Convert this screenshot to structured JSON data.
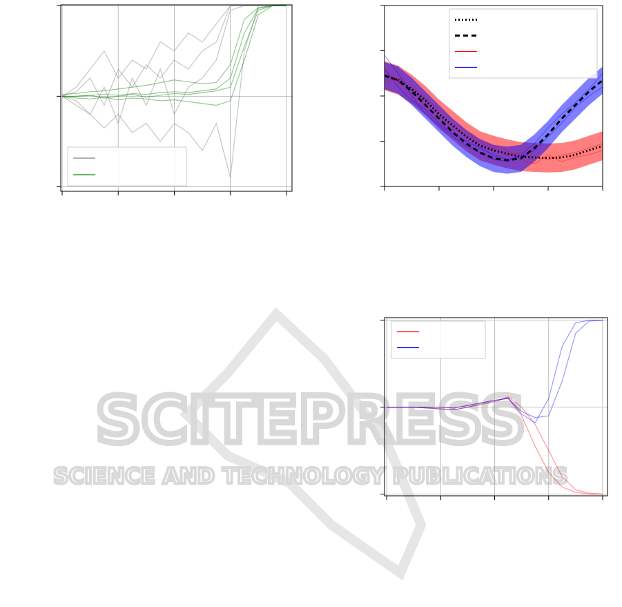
{
  "chart_data": [
    {
      "type": "line",
      "x": [
        0,
        0.25,
        0.5,
        0.75,
        1,
        1.25,
        1.5,
        1.75,
        2,
        2.25,
        2.5,
        2.75,
        3,
        3.25,
        3.5,
        3.75,
        4
      ],
      "xlim": [
        -0.025,
        4.1
      ],
      "xticks": [
        0,
        1,
        2,
        3,
        4
      ],
      "ylim": [
        -1.05,
        1.01
      ],
      "yticks": [
        -1,
        0,
        1
      ],
      "grid": true,
      "legend": "lower left",
      "alpha": 0.45,
      "series": [
        {
          "color": "#808080",
          "lines": [
            [
              0,
              0.1,
              0.3,
              0.5,
              0.2,
              0.4,
              0.3,
              0.6,
              0.5,
              0.7,
              0.6,
              0.8,
              1,
              1,
              1,
              1,
              1
            ],
            [
              0,
              -0.1,
              -0.2,
              0.1,
              -0.3,
              0.2,
              -0.1,
              0.3,
              -0.2,
              0.1,
              0.2,
              0.4,
              0.95,
              1,
              1,
              1,
              1
            ],
            [
              0,
              0.05,
              0.2,
              -0.1,
              0.3,
              0.1,
              0.35,
              0.2,
              0.4,
              0.3,
              0.5,
              0.6,
              1,
              1,
              1,
              1,
              1
            ],
            [
              0,
              -0.05,
              -0.2,
              -0.35,
              -0.2,
              -0.4,
              -0.3,
              -0.5,
              -0.3,
              -0.4,
              -0.6,
              -0.3,
              -0.9,
              0.5,
              1,
              1,
              1
            ]
          ]
        },
        {
          "color": "#118811",
          "lines": [
            [
              0,
              0,
              0.01,
              0.02,
              0.01,
              0.03,
              0.02,
              0.04,
              0.05,
              0.04,
              0.06,
              0.08,
              0.2,
              0.7,
              0.97,
              1,
              1
            ],
            [
              0,
              -0.02,
              -0.03,
              -0.01,
              -0.04,
              -0.02,
              -0.03,
              -0.05,
              -0.04,
              -0.06,
              -0.08,
              -0.1,
              -0.05,
              0.4,
              0.9,
              1,
              1
            ],
            [
              0.02,
              0.03,
              0.05,
              0.06,
              0.08,
              0.1,
              0.12,
              0.15,
              0.18,
              0.16,
              0.14,
              0.15,
              0.35,
              0.85,
              0.98,
              1,
              1
            ],
            [
              -0.01,
              0,
              0.01,
              -0.02,
              0,
              0.02,
              -0.01,
              0.01,
              0.03,
              0.02,
              0.04,
              0.06,
              0.1,
              0.55,
              0.95,
              1,
              1
            ]
          ]
        }
      ]
    },
    {
      "type": "line",
      "x": [
        0,
        0.25,
        0.5,
        0.75,
        1,
        1.25,
        1.5,
        1.75,
        2,
        2.25,
        2.5,
        2.75,
        3,
        3.25,
        3.5,
        3.75,
        4
      ],
      "xlim": [
        0,
        4
      ],
      "xticks": [
        0,
        1,
        2,
        3,
        4
      ],
      "ylim": [
        0,
        4
      ],
      "yticks": [
        0,
        1,
        2,
        3,
        4
      ],
      "grid": false,
      "legend": "upper right",
      "alpha": 0.35,
      "series": [
        {
          "color": "#000000",
          "linestyle": "dotted",
          "band": 0.32,
          "band_color": "#ff0000",
          "lines": [
            [
              2.45,
              2.35,
              2.15,
              1.9,
              1.6,
              1.35,
              1.1,
              0.9,
              0.8,
              0.72,
              0.66,
              0.64,
              0.63,
              0.64,
              0.7,
              0.8,
              0.9
            ]
          ]
        },
        {
          "color": "#000000",
          "linestyle": "dashed",
          "band": 0.3,
          "band_color": "#0000ff",
          "lines": [
            [
              2.45,
              2.35,
              2.1,
              1.8,
              1.5,
              1.2,
              0.95,
              0.75,
              0.62,
              0.58,
              0.62,
              0.85,
              1.15,
              1.5,
              1.8,
              2.1,
              2.35
            ]
          ]
        },
        {
          "color": "#ff0000",
          "lines": [
            [
              2.6,
              2.3,
              2.0,
              1.8,
              1.55,
              1.3,
              1.15,
              0.95,
              0.85,
              0.7,
              0.75,
              0.65,
              0.6,
              0.7,
              0.75,
              0.85,
              0.95
            ],
            [
              2.3,
              2.4,
              2.2,
              1.95,
              1.7,
              1.45,
              1.2,
              1.0,
              0.9,
              0.8,
              0.6,
              0.5,
              0.7,
              0.55,
              0.65,
              0.7,
              0.8
            ]
          ]
        },
        {
          "color": "#0000ff",
          "lines": [
            [
              2.9,
              2.5,
              2.0,
              1.6,
              1.35,
              1.1,
              0.9,
              0.75,
              0.6,
              0.55,
              0.7,
              0.95,
              1.3,
              1.6,
              1.85,
              2.15,
              2.5
            ],
            [
              2.6,
              2.2,
              1.9,
              1.7,
              1.4,
              1.15,
              1.0,
              0.85,
              0.7,
              0.6,
              0.65,
              0.8,
              1.1,
              1.4,
              1.75,
              2.0,
              2.2
            ]
          ]
        }
      ]
    },
    {
      "type": "line",
      "x": [
        0,
        0.25,
        0.5,
        0.75,
        1,
        1.25,
        1.5,
        1.75,
        2,
        2.25,
        2.5,
        2.75,
        3,
        3.25,
        3.5,
        3.75,
        4
      ],
      "xlim": [
        -0.04,
        4.09
      ],
      "xticks": [
        0,
        1,
        2,
        3,
        4
      ],
      "ylim": [
        -1.02,
        1.03
      ],
      "yticks": [
        -1,
        0,
        1
      ],
      "grid": true,
      "legend": "upper left",
      "alpha": 0.4,
      "series": [
        {
          "color": "#ff0000",
          "lines": [
            [
              0,
              0,
              0,
              0,
              0,
              -0.01,
              0.02,
              0.05,
              0.08,
              0.1,
              -0.1,
              -0.45,
              -0.75,
              -0.92,
              -0.98,
              -1,
              -1
            ],
            [
              0,
              0,
              0,
              -0.01,
              -0.02,
              -0.03,
              0,
              0.03,
              0.06,
              0.12,
              0,
              -0.2,
              -0.5,
              -0.8,
              -0.95,
              -0.99,
              -1
            ]
          ]
        },
        {
          "color": "#0000ff",
          "lines": [
            [
              0,
              0,
              0,
              0,
              0,
              -0.01,
              0.02,
              0.05,
              0.08,
              0.1,
              -0.05,
              -0.12,
              -0.1,
              0.3,
              0.85,
              0.99,
              1
            ],
            [
              0,
              0,
              0,
              -0.01,
              -0.02,
              -0.03,
              0,
              0.04,
              0.07,
              0.11,
              -0.08,
              -0.18,
              0.1,
              0.7,
              0.97,
              1,
              1
            ]
          ]
        }
      ]
    }
  ],
  "watermark": {
    "title": "SCITEPRESS",
    "subtitle": "SCIENCE AND TECHNOLOGY PUBLICATIONS"
  }
}
